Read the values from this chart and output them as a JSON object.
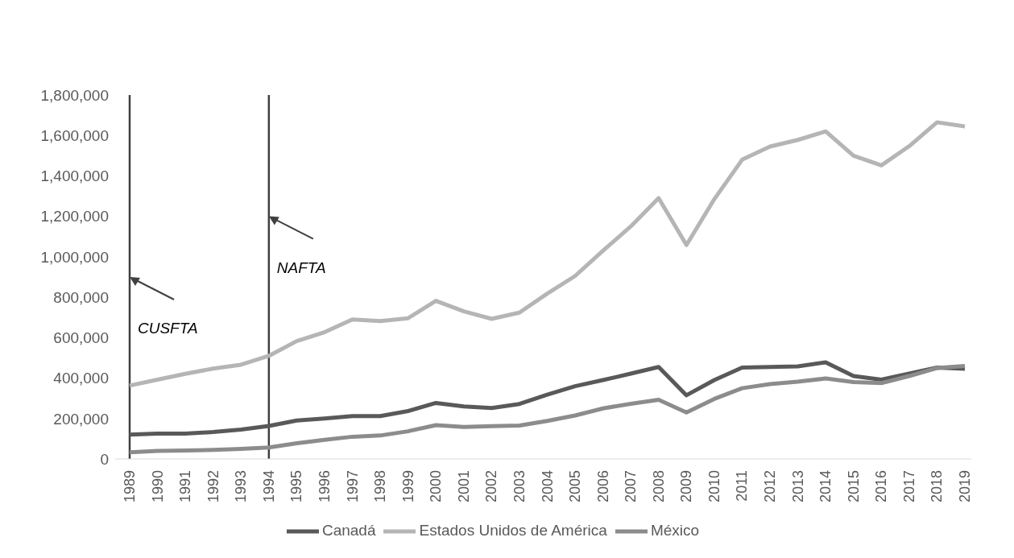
{
  "chart_data": {
    "type": "line",
    "categories": [
      "1989",
      "1990",
      "1991",
      "1992",
      "1993",
      "1994",
      "1995",
      "1996",
      "1997",
      "1998",
      "1999",
      "2000",
      "2001",
      "2002",
      "2003",
      "2004",
      "2005",
      "2006",
      "2007",
      "2008",
      "2009",
      "2010",
      "2011",
      "2012",
      "2013",
      "2014",
      "2015",
      "2016",
      "2017",
      "2018",
      "2019"
    ],
    "series": [
      {
        "name": "Canadá",
        "color": "#595959",
        "values": [
          120000,
          125000,
          125000,
          133000,
          145000,
          163000,
          190000,
          200000,
          212000,
          212000,
          237000,
          277000,
          260000,
          252000,
          272000,
          318000,
          360000,
          390000,
          422000,
          455000,
          315000,
          390000,
          452000,
          455000,
          458000,
          478000,
          410000,
          392000,
          422000,
          452000,
          446000
        ]
      },
      {
        "name": "Estados Unidos de América",
        "color": "#b5b5b5",
        "values": [
          363000,
          392000,
          421000,
          447000,
          466000,
          510000,
          583000,
          627000,
          690000,
          682000,
          696000,
          782000,
          730000,
          693000,
          724000,
          818000,
          905000,
          1030000,
          1150000,
          1290000,
          1058000,
          1285000,
          1480000,
          1545000,
          1578000,
          1620000,
          1500000,
          1452000,
          1547000,
          1665000,
          1645000
        ]
      },
      {
        "name": "México",
        "color": "#8c8c8c",
        "values": [
          33000,
          40000,
          42000,
          45000,
          50000,
          57000,
          78000,
          95000,
          110000,
          116000,
          137000,
          167000,
          158000,
          162000,
          165000,
          188000,
          215000,
          250000,
          273000,
          293000,
          230000,
          297000,
          350000,
          370000,
          382000,
          398000,
          380000,
          375000,
          410000,
          450000,
          460000
        ]
      }
    ],
    "ylim": [
      0,
      1800000
    ],
    "yticks": [
      {
        "value": 0,
        "label": "0"
      },
      {
        "value": 200000,
        "label": "200,000"
      },
      {
        "value": 400000,
        "label": "400,000"
      },
      {
        "value": 600000,
        "label": "600,000"
      },
      {
        "value": 800000,
        "label": "800,000"
      },
      {
        "value": 1000000,
        "label": "1,000,000"
      },
      {
        "value": 1200000,
        "label": "1,200,000"
      },
      {
        "value": 1400000,
        "label": "1,400,000"
      },
      {
        "value": 1600000,
        "label": "1,600,000"
      },
      {
        "value": 1800000,
        "label": "1,800,000"
      }
    ],
    "ref_lines": [
      {
        "axis": "x",
        "value": "1989",
        "color": "#404040"
      },
      {
        "axis": "x",
        "value": "1994",
        "color": "#404040"
      }
    ],
    "annotations": [
      "CUSFTA",
      "NAFTA"
    ],
    "legend": "bottom",
    "marker": "none",
    "line_style": "solid"
  }
}
